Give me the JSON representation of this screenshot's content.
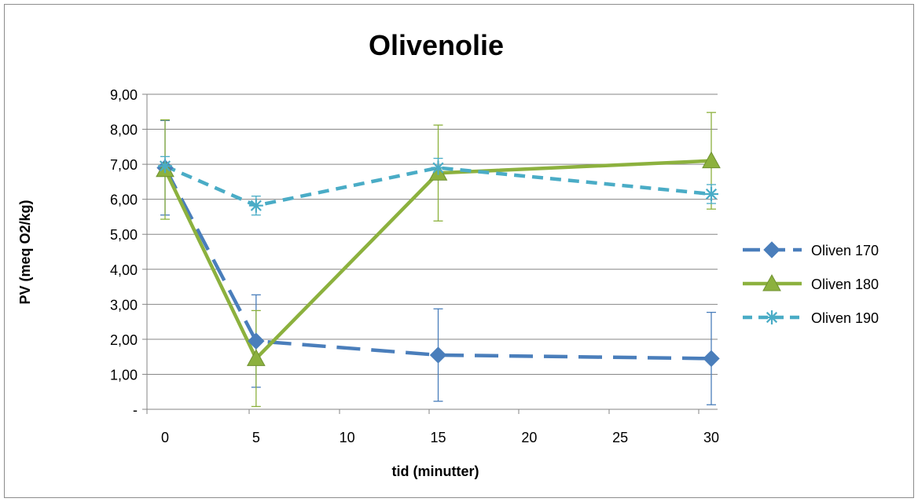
{
  "chart_data": {
    "type": "line",
    "title": "Olivenolie",
    "xlabel": "tid (minutter)",
    "ylabel": "PV (meq O2/kg)",
    "x": [
      0,
      5,
      15,
      30
    ],
    "xlim": [
      0,
      30
    ],
    "ylim": [
      0,
      9
    ],
    "xticks": [
      0,
      5,
      10,
      15,
      20,
      25,
      30
    ],
    "xtick_labels": [
      "0",
      "5",
      "10",
      "15",
      "20",
      "25",
      "30"
    ],
    "yticks": [
      0,
      1,
      2,
      3,
      4,
      5,
      6,
      7,
      8,
      9
    ],
    "ytick_labels": [
      "-",
      "1,00",
      "2,00",
      "3,00",
      "4,00",
      "5,00",
      "6,00",
      "7,00",
      "8,00",
      "9,00"
    ],
    "grid": "horizontal",
    "legend_position": "right",
    "series": [
      {
        "name": "Oliven 170",
        "values": [
          6.9,
          1.95,
          1.55,
          1.45
        ],
        "errors": [
          1.35,
          1.32,
          1.32,
          1.32
        ],
        "color": "#4a7ebb",
        "line_style": "long-dash",
        "marker": "diamond"
      },
      {
        "name": "Oliven 180",
        "values": [
          6.85,
          1.45,
          6.75,
          7.1
        ],
        "errors": [
          1.42,
          1.37,
          1.37,
          1.38
        ],
        "color": "#8cb13e",
        "line_style": "solid",
        "marker": "triangle"
      },
      {
        "name": "Oliven 190",
        "values": [
          6.95,
          5.82,
          6.9,
          6.15
        ],
        "errors": [
          0.27,
          0.27,
          0.27,
          0.27
        ],
        "color": "#4aacc6",
        "line_style": "dash",
        "marker": "asterisk"
      }
    ]
  }
}
